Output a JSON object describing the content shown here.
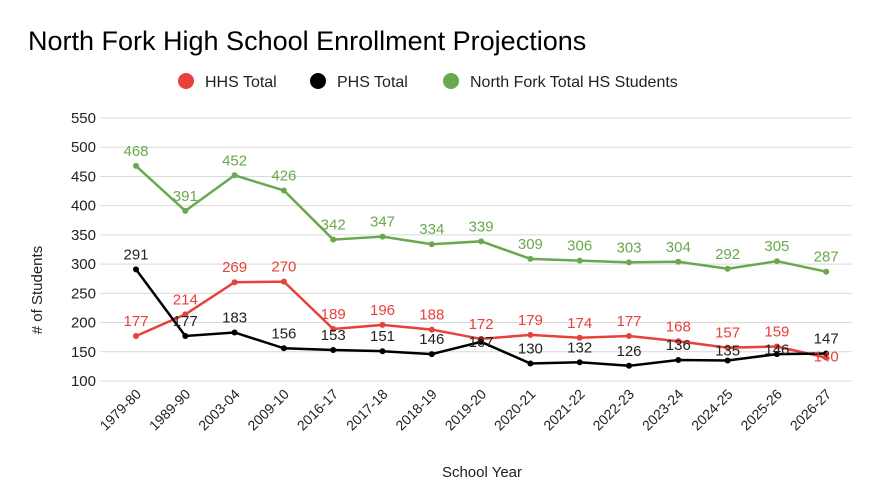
{
  "chart_data": {
    "type": "line",
    "title": "North Fork High School Enrollment Projections",
    "xlabel": "School Year",
    "ylabel": "# of Students",
    "ylim": [
      100,
      550
    ],
    "yticks": [
      100,
      150,
      200,
      250,
      300,
      350,
      400,
      450,
      500,
      550
    ],
    "grid": true,
    "legend_position": "top",
    "categories": [
      "1979-80",
      "1989-90",
      "2003-04",
      "2009-10",
      "2016-17",
      "2017-18",
      "2018-19",
      "2019-20",
      "2020-21",
      "2021-22",
      "2022-23",
      "2023-24",
      "2024-25",
      "2025-26",
      "2026-27"
    ],
    "series": [
      {
        "name": "HHS Total",
        "color": "#e8403a",
        "values": [
          177,
          214,
          269,
          270,
          189,
          196,
          188,
          172,
          179,
          174,
          177,
          168,
          157,
          159,
          140
        ]
      },
      {
        "name": "PHS Total",
        "color": "#000000",
        "values": [
          291,
          177,
          183,
          156,
          153,
          151,
          146,
          167,
          130,
          132,
          126,
          136,
          135,
          146,
          147
        ]
      },
      {
        "name": "North Fork Total HS Students",
        "color": "#6aa84f",
        "values": [
          468,
          391,
          452,
          426,
          342,
          347,
          334,
          339,
          309,
          306,
          303,
          304,
          292,
          305,
          287
        ]
      }
    ]
  }
}
